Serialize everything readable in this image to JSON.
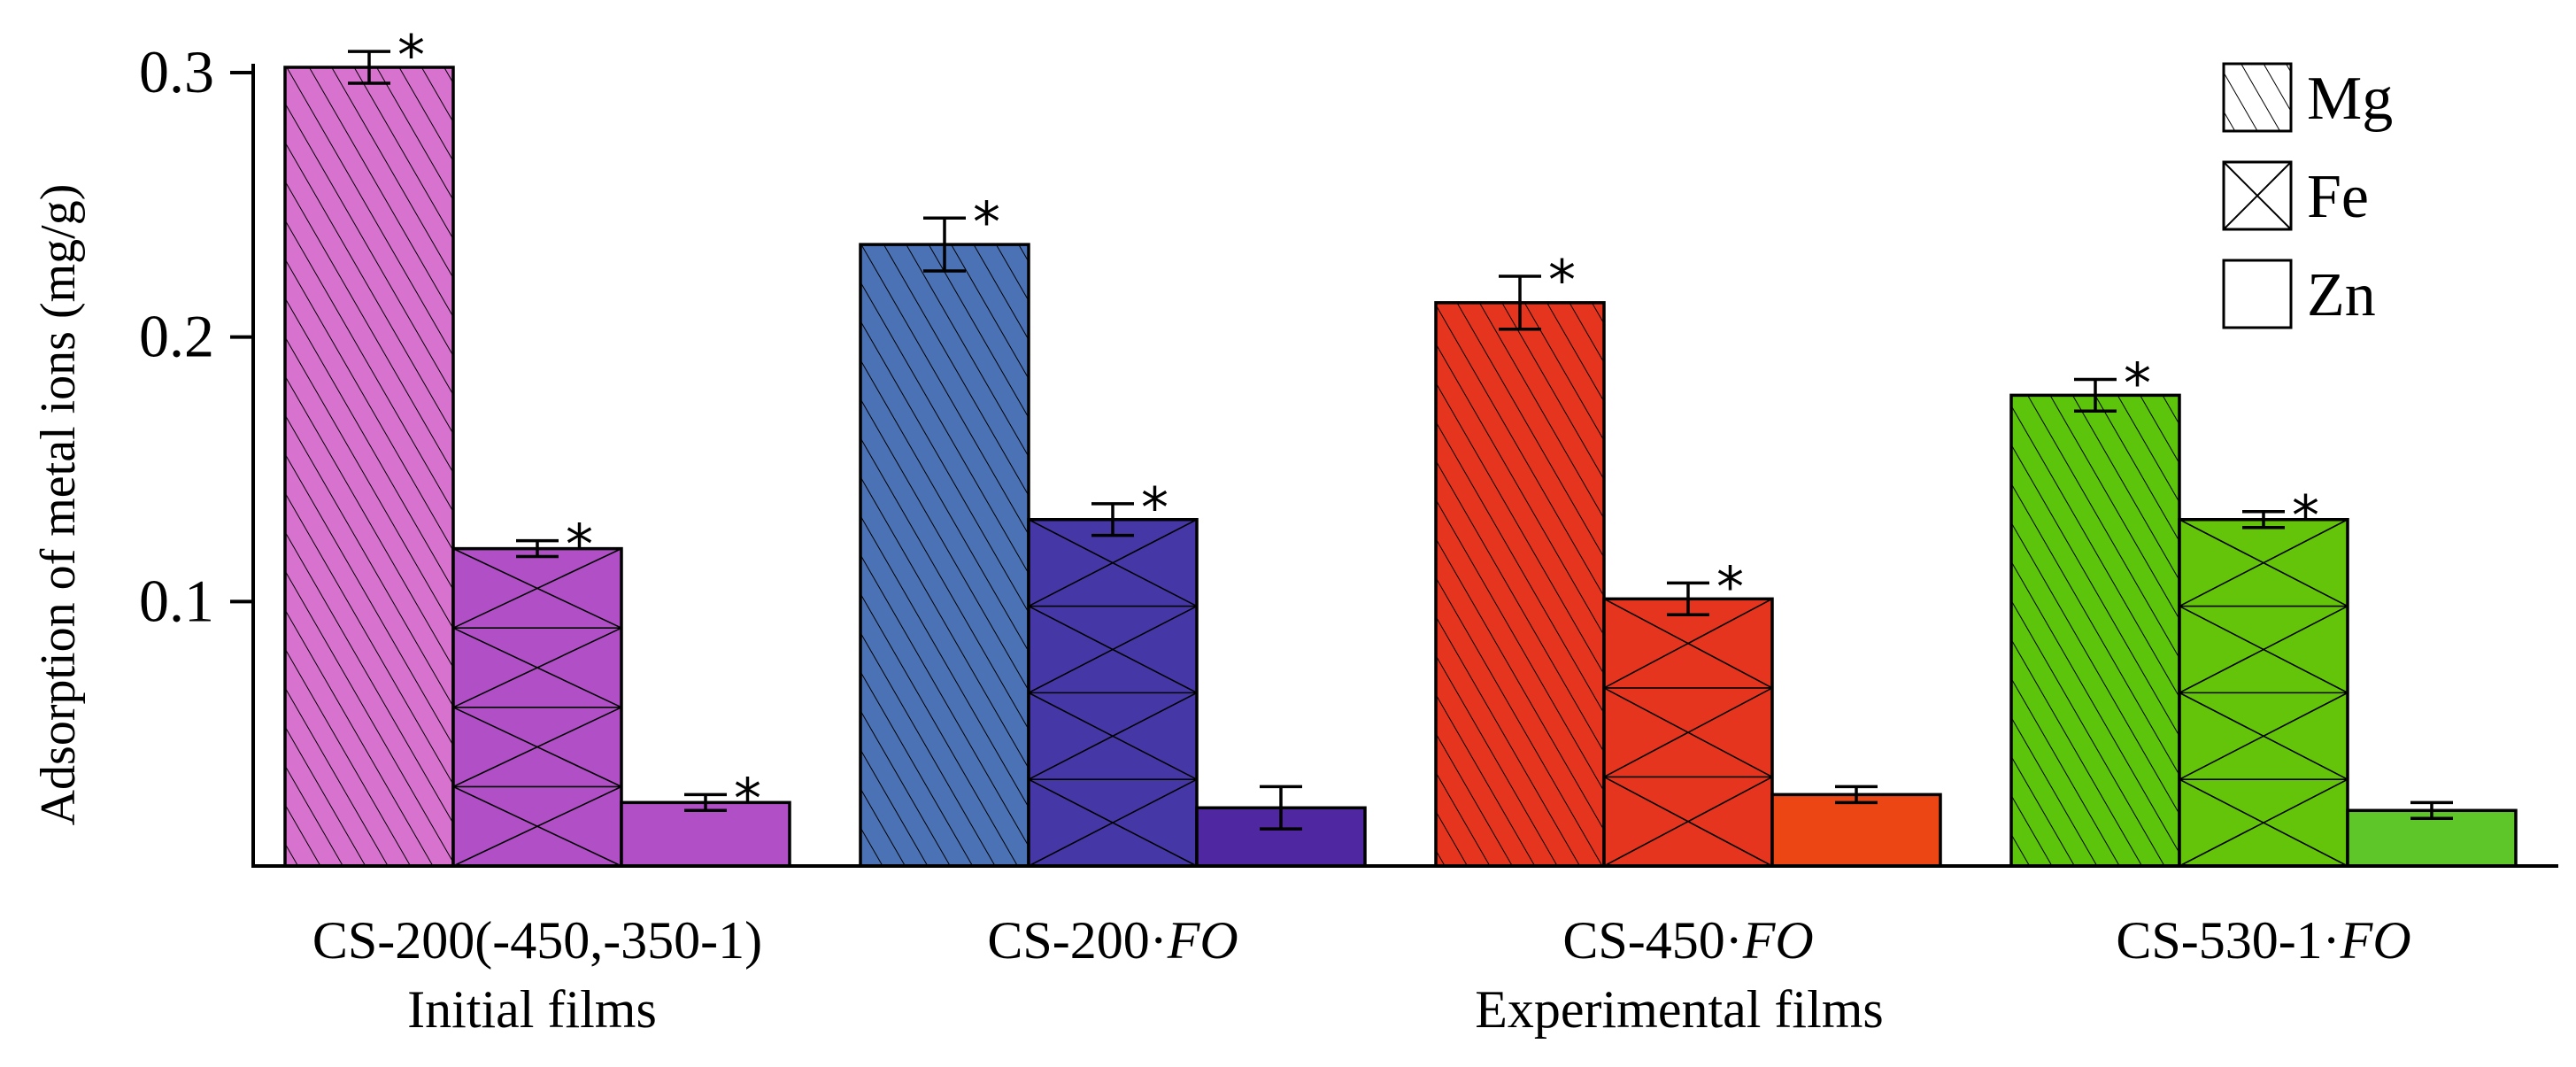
{
  "chart_data": {
    "type": "bar",
    "ylabel": "Adsorption of metal ions (mg/g)",
    "ylim": [
      0,
      0.3
    ],
    "yticks": [
      {
        "value": 0.1,
        "label": "0.1"
      },
      {
        "value": 0.2,
        "label": "0.2"
      },
      {
        "value": 0.3,
        "label": "0.3"
      }
    ],
    "categories": [
      "CS-200(-450,-350-1)",
      "CS-200·FO",
      "CS-450·FO",
      "CS-530-1·FO"
    ],
    "category_parts": [
      {
        "plain": "CS-200(-450,-350-1)",
        "italic": ""
      },
      {
        "plain": "CS-200·",
        "italic": "FO"
      },
      {
        "plain": "CS-450·",
        "italic": "FO"
      },
      {
        "plain": "CS-530-1·",
        "italic": "FO"
      }
    ],
    "group_labels": [
      {
        "text": "Initial films",
        "under_category": 0
      },
      {
        "text": "Experimental films",
        "under_category": 2
      }
    ],
    "series": [
      {
        "name": "Mg",
        "pattern": "diagonal-hatch",
        "values": [
          0.302,
          0.235,
          0.213,
          0.178
        ],
        "errors": [
          0.006,
          0.01,
          0.01,
          0.006
        ],
        "significant": [
          true,
          true,
          true,
          true
        ]
      },
      {
        "name": "Fe",
        "pattern": "cross-hatch",
        "values": [
          0.12,
          0.131,
          0.101,
          0.131
        ],
        "errors": [
          0.003,
          0.006,
          0.006,
          0.003
        ],
        "significant": [
          true,
          true,
          true,
          true
        ]
      },
      {
        "name": "Zn",
        "pattern": "none",
        "values": [
          0.024,
          0.022,
          0.027,
          0.021
        ],
        "errors": [
          0.003,
          0.008,
          0.003,
          0.003
        ],
        "significant": [
          true,
          false,
          false,
          false
        ]
      }
    ],
    "significance_symbol": "*",
    "group_colors": [
      [
        "#d872cf",
        "#b04fc6",
        "#b04fc6"
      ],
      [
        "#4a72b5",
        "#4637a6",
        "#4f27a0"
      ],
      [
        "#e6351f",
        "#e6351f",
        "#ec4615"
      ],
      [
        "#5cc40a",
        "#64c40a",
        "#5fc62a"
      ]
    ],
    "legend": {
      "position": "top-right",
      "entries": [
        "Mg",
        "Fe",
        "Zn"
      ]
    },
    "grid": false
  }
}
